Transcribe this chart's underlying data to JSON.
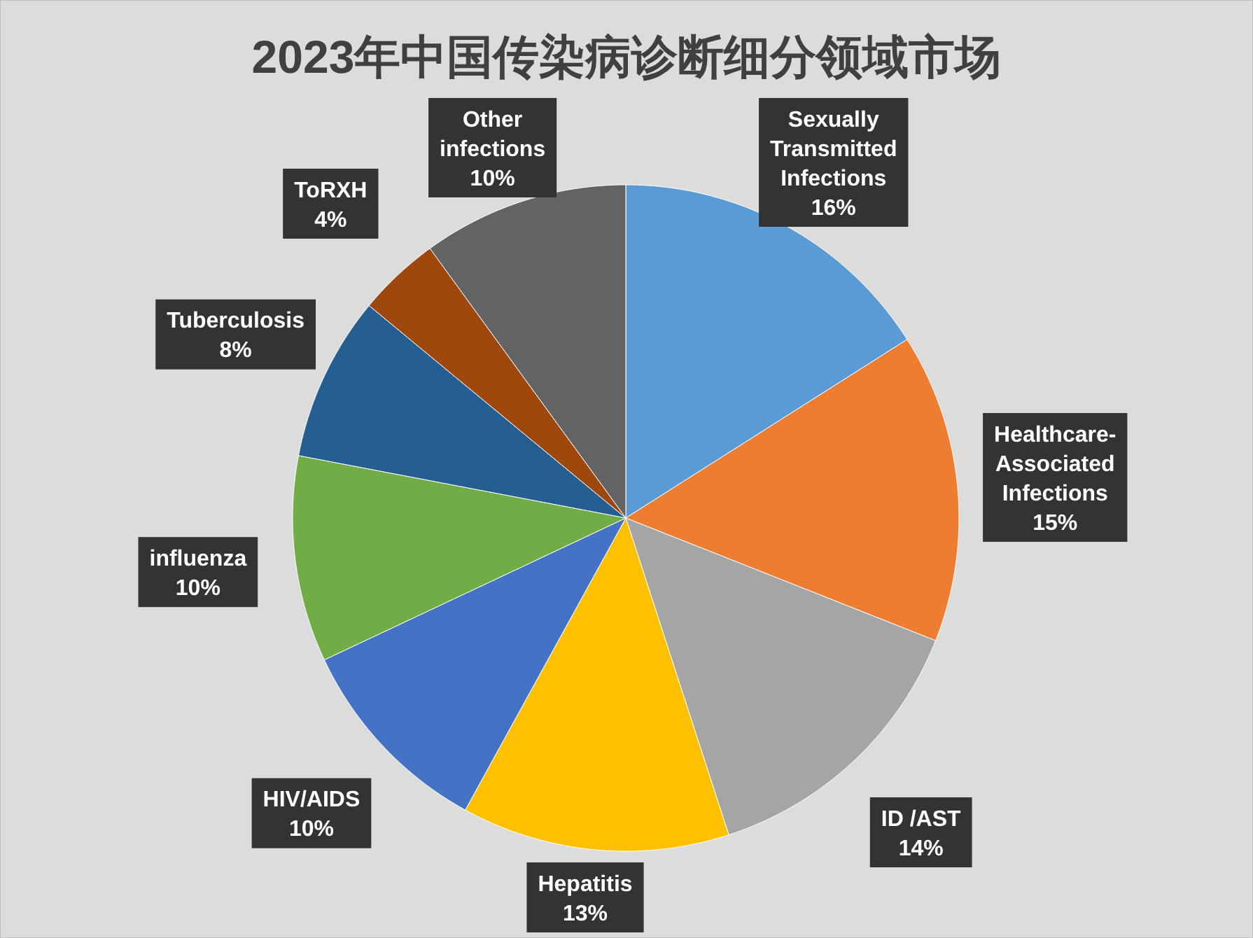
{
  "chart_data": {
    "type": "pie",
    "title": "2023年中国传染病诊断细分领域市场",
    "categories": [
      "Sexually Transmitted Infections",
      "Healthcare-Associated Infections",
      "ID /AST",
      "Hepatitis",
      "HIV/AIDS",
      "influenza",
      "Tuberculosis",
      "ToRXH",
      "Other infections"
    ],
    "values": [
      16,
      15,
      14,
      13,
      10,
      10,
      8,
      4,
      10
    ],
    "colors": [
      "#5b9bd5",
      "#ed7d31",
      "#a5a5a5",
      "#ffc000",
      "#4472c4",
      "#70ad47",
      "#255e91",
      "#9e480e",
      "#636363"
    ],
    "value_labels": [
      "16%",
      "15%",
      "14%",
      "13%",
      "10%",
      "10%",
      "8%",
      "4%",
      "10%"
    ],
    "legend": false
  }
}
